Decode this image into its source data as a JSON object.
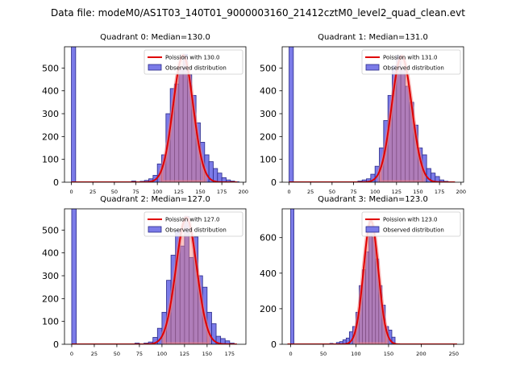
{
  "suptitle": "Data file: modeM0/AS1T03_140T01_9000003160_21412cztM0_level2_quad_clean.evt",
  "colors": {
    "bar_fill": "#7b7be8",
    "bar_edge": "#2a2a8a",
    "line": "#e00000",
    "band": "#f08080"
  },
  "chart_data": [
    {
      "type": "bar",
      "title": "Quadrant 0: Median=130.0",
      "xlim": [
        -8,
        203
      ],
      "ylim": [
        0,
        593
      ],
      "xticks": [
        0,
        25,
        50,
        75,
        100,
        125,
        150,
        175,
        200
      ],
      "yticks": [
        0,
        100,
        200,
        300,
        400,
        500
      ],
      "bin_width": 5,
      "legend": [
        "Poission with 130.0",
        "Observed distribution"
      ],
      "median": 130.0,
      "bins_start": [
        0,
        70,
        80,
        85,
        90,
        95,
        100,
        105,
        110,
        115,
        120,
        125,
        130,
        135,
        140,
        145,
        150,
        155,
        160,
        165,
        170,
        175,
        180,
        185,
        190
      ],
      "counts": [
        600,
        5,
        4,
        8,
        15,
        30,
        80,
        120,
        300,
        410,
        430,
        500,
        560,
        470,
        380,
        260,
        175,
        120,
        90,
        60,
        40,
        20,
        10,
        5,
        2
      ],
      "poisson_peak": 555
    },
    {
      "type": "bar",
      "title": "Quadrant 1: Median=131.0",
      "xlim": [
        -8,
        203
      ],
      "ylim": [
        0,
        593
      ],
      "xticks": [
        0,
        25,
        50,
        75,
        100,
        125,
        150,
        175,
        200
      ],
      "yticks": [
        0,
        100,
        200,
        300,
        400,
        500
      ],
      "bin_width": 5,
      "legend": [
        "Poission with 131.0",
        "Observed distribution"
      ],
      "median": 131.0,
      "bins_start": [
        0,
        80,
        85,
        90,
        95,
        100,
        105,
        110,
        115,
        120,
        125,
        130,
        135,
        140,
        145,
        150,
        155,
        160,
        165,
        170,
        175,
        180
      ],
      "counts": [
        600,
        5,
        10,
        15,
        35,
        70,
        150,
        270,
        380,
        510,
        555,
        490,
        420,
        350,
        250,
        150,
        120,
        60,
        40,
        25,
        10,
        4
      ],
      "poisson_peak": 552
    },
    {
      "type": "bar",
      "title": "Quadrant 2: Median=127.0",
      "xlim": [
        -8,
        193
      ],
      "ylim": [
        0,
        593
      ],
      "xticks": [
        0,
        25,
        50,
        75,
        100,
        125,
        150,
        175
      ],
      "yticks": [
        0,
        100,
        200,
        300,
        400,
        500
      ],
      "bin_width": 5,
      "legend": [
        "Poission with 127.0",
        "Observed distribution"
      ],
      "median": 127.0,
      "bins_start": [
        0,
        70,
        80,
        85,
        90,
        95,
        100,
        105,
        110,
        115,
        120,
        125,
        130,
        135,
        140,
        145,
        150,
        155,
        160,
        165,
        170,
        175
      ],
      "counts": [
        600,
        5,
        5,
        10,
        30,
        70,
        140,
        280,
        390,
        500,
        430,
        560,
        380,
        470,
        300,
        250,
        140,
        90,
        35,
        25,
        15,
        5
      ],
      "poisson_peak": 555
    },
    {
      "type": "bar",
      "title": "Quadrant 3: Median=123.0",
      "xlim": [
        -13,
        265
      ],
      "ylim": [
        0,
        762
      ],
      "xticks": [
        0,
        50,
        100,
        150,
        200,
        250
      ],
      "yticks": [
        0,
        200,
        400,
        600
      ],
      "bin_width": 5,
      "legend": [
        "Poission with 123.0",
        "Observed distribution"
      ],
      "median": 123.0,
      "bins_start": [
        0,
        60,
        70,
        75,
        80,
        85,
        90,
        95,
        100,
        105,
        110,
        115,
        120,
        125,
        130,
        135,
        140,
        145,
        150,
        155
      ],
      "counts": [
        770,
        5,
        10,
        15,
        25,
        35,
        70,
        100,
        180,
        330,
        420,
        520,
        700,
        600,
        480,
        330,
        220,
        100,
        80,
        40
      ],
      "poisson_peak": 695
    }
  ]
}
